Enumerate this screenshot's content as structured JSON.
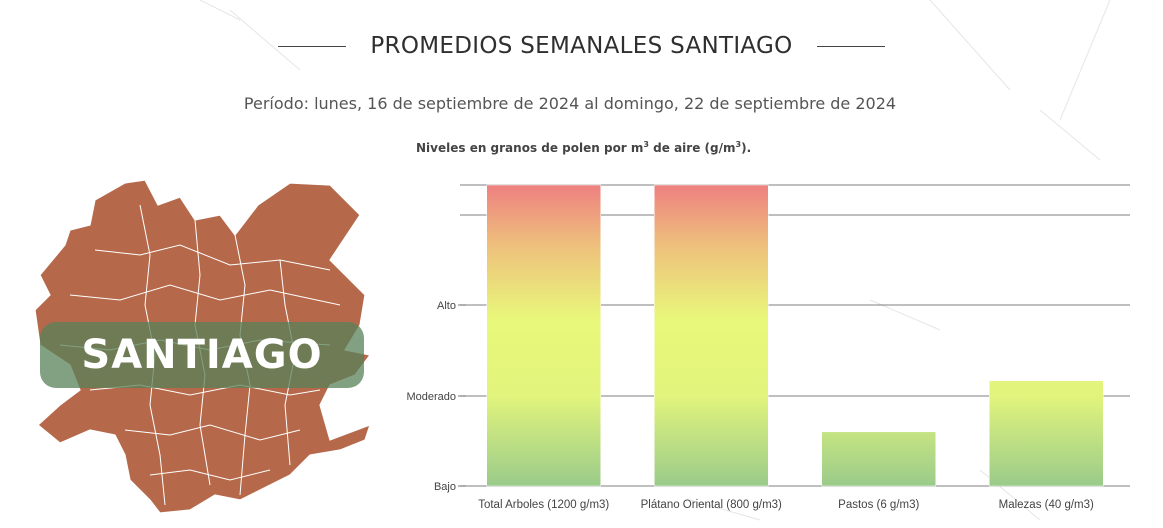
{
  "header": {
    "title": "PROMEDIOS SEMANALES SANTIAGO"
  },
  "period": "Período: lunes, 16 de septiembre de 2024 al domingo, 22 de septiembre de 2024",
  "unit_note": {
    "prefix": "Niveles en granos de polen por m",
    "mid": " de aire (g/m",
    "suffix": ").",
    "sup": "3"
  },
  "map": {
    "label": "SANTIAGO",
    "color": "#b5694a"
  },
  "chart_data": {
    "type": "bar",
    "categories": [
      "Total Arboles (1200 g/m3)",
      "Plátano Oriental (800 g/m3)",
      "Pastos (6 g/m3)",
      "Malezas (40 g/m3)"
    ],
    "values": [
      1200,
      800,
      6,
      40
    ],
    "y_levels": [
      "Bajo",
      "Moderado",
      "Alto"
    ],
    "level_fraction": [
      1.0,
      1.0,
      0.18,
      0.35
    ],
    "colors": {
      "high": "#ee8080",
      "mid": "#e8f87a",
      "low": "#9acb8a"
    }
  }
}
